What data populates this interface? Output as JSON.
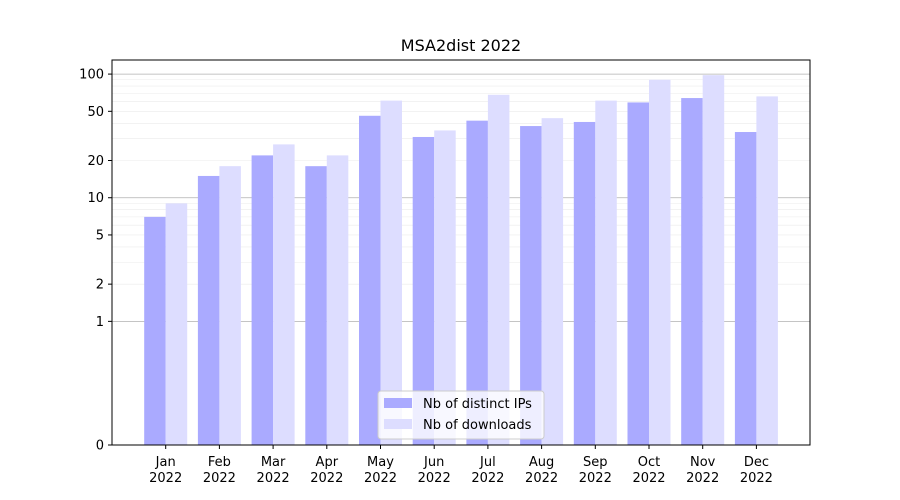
{
  "chart_data": {
    "type": "bar",
    "title": "MSA2dist 2022",
    "xlabel": "",
    "ylabel": "",
    "yscale": "symlog",
    "ylim": [
      0,
      130
    ],
    "yticks": [
      0,
      1,
      2,
      5,
      10,
      20,
      50,
      100
    ],
    "ytick_labels": [
      "0",
      "1",
      "2",
      "5",
      "10",
      "20",
      "50",
      "100"
    ],
    "categories": [
      "Jan\n2022",
      "Feb\n2022",
      "Mar\n2022",
      "Apr\n2022",
      "May\n2022",
      "Jun\n2022",
      "Jul\n2022",
      "Aug\n2022",
      "Sep\n2022",
      "Oct\n2022",
      "Nov\n2022",
      "Dec\n2022"
    ],
    "series": [
      {
        "name": "Nb of distinct IPs",
        "color": "#aaaaff",
        "values": [
          7,
          15,
          22,
          18,
          46,
          31,
          42,
          38,
          41,
          59,
          64,
          34
        ]
      },
      {
        "name": "Nb of downloads",
        "color": "#ddddff",
        "values": [
          9,
          18,
          27,
          22,
          61,
          35,
          68,
          44,
          61,
          90,
          98,
          66
        ]
      }
    ],
    "grid": true,
    "legend_position": "bottom-center"
  }
}
